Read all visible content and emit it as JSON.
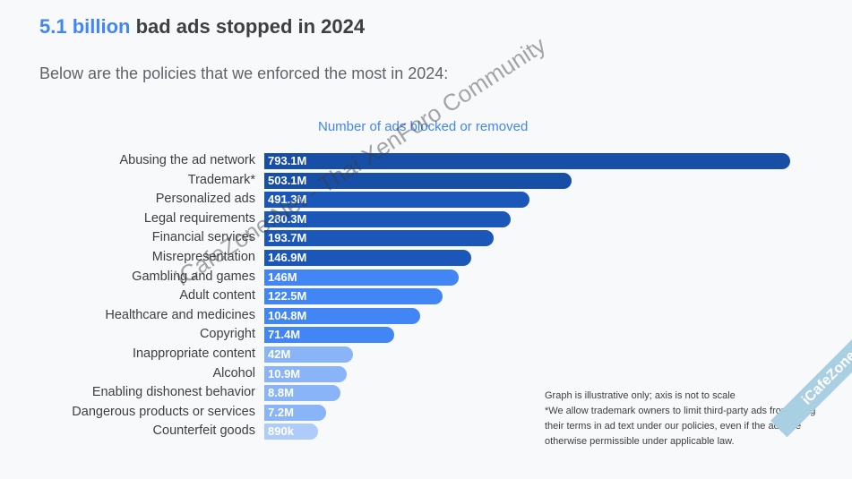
{
  "header": {
    "title_highlight": "5.1 billion",
    "title_rest": " bad ads stopped in 2024",
    "subtitle": "Below are the policies that we enforced the most in 2024:"
  },
  "chart_data": {
    "type": "bar",
    "orientation": "horizontal",
    "xlabel": "Number of ads blocked or removed",
    "categories": [
      "Abusing the ad network",
      "Trademark*",
      "Personalized ads",
      "Legal requirements",
      "Financial services",
      "Misrepresentation",
      "Gambling and games",
      "Adult content",
      "Healthcare and medicines",
      "Copyright",
      "Inappropriate content",
      "Alcohol",
      "Enabling dishonest behavior",
      "Dangerous products or services",
      "Counterfeit goods"
    ],
    "values": [
      793100000,
      503100000,
      491300000,
      280300000,
      193700000,
      146900000,
      146000000,
      122500000,
      104800000,
      71400000,
      42000000,
      10900000,
      8800000,
      7200000,
      890000
    ],
    "data_labels": [
      "793.1M",
      "503.1M",
      "491.3M",
      "280.3M",
      "193.7M",
      "146.9M",
      "146M",
      "122.5M",
      "104.8M",
      "71.4M",
      "42M",
      "10.9M",
      "8.8M",
      "7.2M",
      "890k"
    ],
    "colors": [
      "#174ea6",
      "#174ea6",
      "#1a57b8",
      "#1a57b8",
      "#1a57b8",
      "#1a57b8",
      "#4285f4",
      "#4285f4",
      "#4285f4",
      "#4285f4",
      "#8ab4f8",
      "#8ab4f8",
      "#8ab4f8",
      "#8ab4f8",
      "#aecbfa"
    ],
    "grid": false
  },
  "notes": [
    "Graph is illustrative only; axis is not to scale",
    "*We allow trademark owners to limit third-party ads from using their terms in ad text under our policies, even if the ads are otherwise permissible under applicable law."
  ],
  "watermarks": [
    "iCafeZone.Net - Thai XenForo Community",
    "iCafeZone"
  ]
}
